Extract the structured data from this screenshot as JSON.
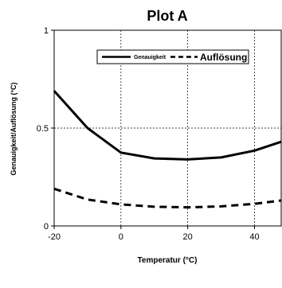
{
  "chart_data": {
    "type": "line",
    "title": "Plot A",
    "xlabel": "Temperatur (°C)",
    "ylabel": "Genauigkeit/Auflösung (°C)",
    "xlim": [
      -20,
      48
    ],
    "ylim": [
      0,
      1
    ],
    "x_ticks": [
      -20,
      0,
      20,
      40
    ],
    "y_ticks": [
      0,
      0.5,
      1
    ],
    "x_tick_labels": [
      "-20",
      "0",
      "20",
      "40"
    ],
    "y_tick_labels": [
      "0",
      "0.5",
      "1"
    ],
    "grid": "dotted",
    "legend_position": "top-right",
    "series": [
      {
        "name": "Genauigkeit",
        "line_style": "solid",
        "color": "#000000",
        "x": [
          -20,
          -10,
          0,
          10,
          20,
          30,
          40,
          48
        ],
        "y": [
          0.69,
          0.5,
          0.375,
          0.345,
          0.34,
          0.35,
          0.385,
          0.43
        ]
      },
      {
        "name": "Auflösung",
        "line_style": "dashed",
        "color": "#000000",
        "x": [
          -20,
          -10,
          0,
          10,
          20,
          30,
          40,
          48
        ],
        "y": [
          0.19,
          0.135,
          0.11,
          0.098,
          0.095,
          0.1,
          0.113,
          0.13
        ]
      }
    ]
  }
}
